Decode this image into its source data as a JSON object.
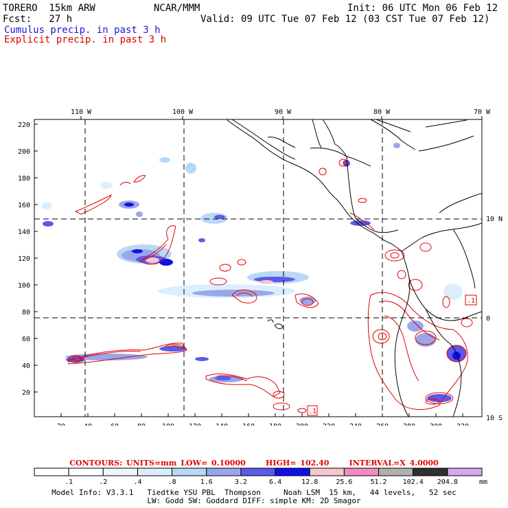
{
  "header": {
    "model": "TORERO  15km ARW",
    "center": "NCAR/MMM",
    "init": "Init: 06 UTC Mon 06 Feb 12",
    "fcst": "Fcst:   27 h",
    "valid": "Valid: 09 UTC Tue 07 Feb 12 (03 CST Tue 07 Feb 12)",
    "field1": "Cumulus precip. in past 3 h",
    "field2": "Explicit precip. in past 3 h"
  },
  "colors": {
    "cumulus": "#1a1ad0",
    "explicit": "#e00000"
  },
  "map": {
    "lon_labels": [
      "110 W",
      "100 W",
      "90 W",
      "80 W",
      "70 W"
    ],
    "lat_labels": [
      "10 N",
      "0",
      "10 S"
    ],
    "y_ticks": [
      "220",
      "200",
      "180",
      "160",
      "140",
      "120",
      "100",
      "80",
      "60",
      "40",
      "20"
    ],
    "x_ticks": [
      "20",
      "40",
      "60",
      "80",
      "100",
      "120",
      "140",
      "160",
      "180",
      "200",
      "220",
      "240",
      "260",
      "280",
      "300",
      "320"
    ],
    "contour_labels": [
      ".1",
      ".1"
    ]
  },
  "contours_line": {
    "prefix": "CONTOURS:",
    "units": "UNITS=mm",
    "low": "LOW= 0.10000",
    "high": "HIGH=  102.40",
    "interval": "INTERVAL=X  4.0000"
  },
  "legend": {
    "labels": [
      ".1",
      ".2",
      ".4",
      ".8",
      "1.6",
      "3.2",
      "6.4",
      "12.8",
      "25.6",
      "51.2",
      "102.4",
      "204.8"
    ],
    "units": "mm",
    "colors": [
      "#ffffff",
      "#ffffff",
      "#eef6fc",
      "#dceefb",
      "#b8d8f6",
      "#9aa6ec",
      "#5c5ae6",
      "#1111e6",
      "#f5c8cc",
      "#f08cc0",
      "#b0b0b0",
      "#303030",
      "#d6a6ef"
    ]
  },
  "model_info": {
    "line1": "Model Info: V3.3.1   Tiedtke YSU PBL  Thompson     Noah LSM  15 km,   44 levels,   52 sec",
    "line2": "LW: Godd SW: Goddard DIFF: simple KM: 2D Smagor"
  }
}
